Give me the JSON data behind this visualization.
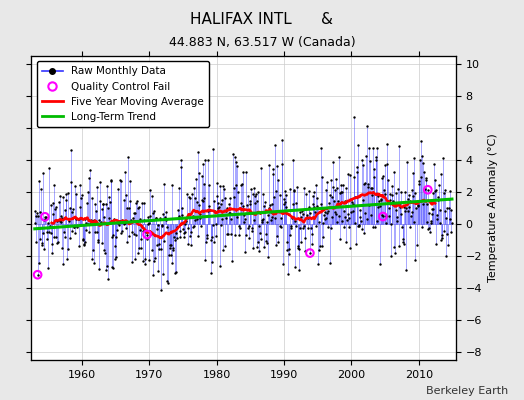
{
  "title": "HALIFAX INTL      &",
  "subtitle": "44.883 N, 63.517 W (Canada)",
  "ylabel": "Temperature Anomaly (°C)",
  "footer": "Berkeley Earth",
  "ylim": [
    -8.5,
    10.5
  ],
  "yticks": [
    -8,
    -6,
    -4,
    -2,
    0,
    2,
    4,
    6,
    8,
    10
  ],
  "xlim": [
    1952.5,
    2015.5
  ],
  "xticks": [
    1960,
    1970,
    1980,
    1990,
    2000,
    2010
  ],
  "background_color": "#e8e8e8",
  "plot_background": "#ffffff",
  "raw_line_color": "#3333ff",
  "raw_dot_color": "#000000",
  "qc_fail_color": "#ff00ff",
  "moving_avg_color": "#ff0000",
  "trend_color": "#00bb00",
  "grid_color": "#cccccc",
  "trend_slope": 0.03,
  "trend_intercept": -0.3,
  "noise_std": 1.6,
  "seed": 77
}
